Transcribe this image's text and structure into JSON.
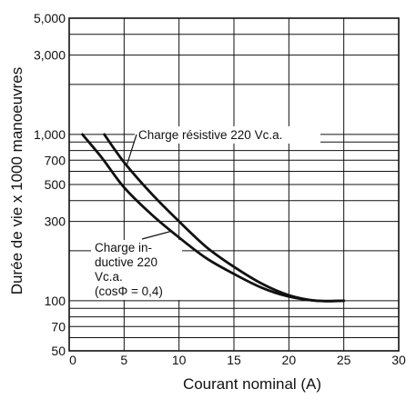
{
  "chart_data": {
    "type": "line",
    "xlabel": "Courant nominal (A)",
    "ylabel": "Durée de vie x 1000 manoeuvres",
    "xlim": [
      0,
      30
    ],
    "ylim": [
      50,
      5000
    ],
    "y_scale": "log",
    "grid": true,
    "x_ticks": [
      0,
      5,
      10,
      15,
      20,
      25,
      30
    ],
    "x_tick_labels": [
      "0",
      "5",
      "10",
      "15",
      "20",
      "25",
      "30"
    ],
    "y_ticks": [
      50,
      70,
      100,
      300,
      500,
      700,
      1000,
      3000,
      5000
    ],
    "y_tick_labels": [
      "50",
      "70",
      "100",
      "300",
      "500",
      "700",
      "1,000",
      "3,000",
      "5,000"
    ],
    "y_gridlines": [
      50,
      60,
      70,
      80,
      90,
      100,
      200,
      300,
      400,
      500,
      600,
      700,
      800,
      900,
      1000,
      2000,
      3000,
      4000,
      5000
    ],
    "annotations": [
      {
        "lines": [
          "Charge résistive 220 Vc.a."
        ]
      },
      {
        "lines": [
          "Charge in-",
          "ductive 220",
          "Vc.a.",
          "(cosΦ = 0,4)"
        ]
      }
    ],
    "series": [
      {
        "x": [
          3.2,
          5,
          7.5,
          10,
          12.5,
          15,
          17.5,
          20,
          22.5,
          25
        ],
        "y": [
          1000,
          680,
          440,
          300,
          210,
          160,
          127,
          108,
          100,
          100
        ]
      },
      {
        "x": [
          1.2,
          3,
          5,
          7.5,
          10,
          12.5,
          15,
          17.5,
          20,
          22.5,
          25
        ],
        "y": [
          1000,
          720,
          480,
          330,
          240,
          180,
          145,
          120,
          106,
          100,
          100
        ]
      }
    ]
  }
}
